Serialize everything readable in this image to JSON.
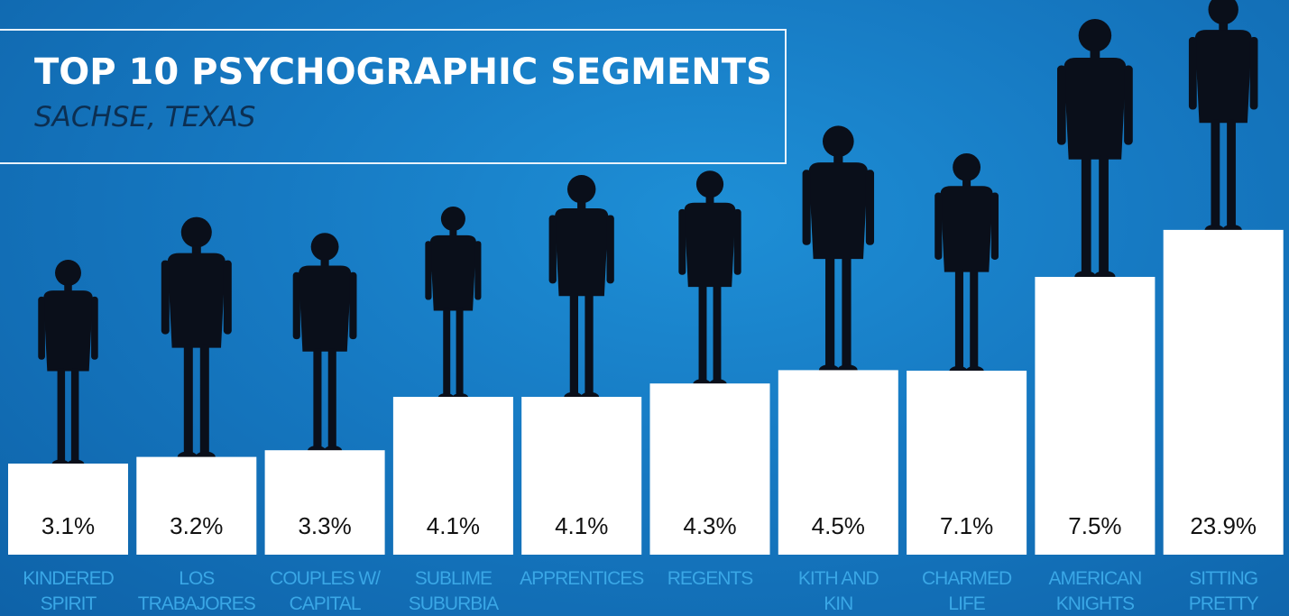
{
  "colors": {
    "background": "#1679c2",
    "bar": "#ffffff",
    "title": "#ffffff",
    "subtitle": "#0c2f52",
    "category_label": "#3aa7e6",
    "silhouette": "#0a0f1a"
  },
  "chart_data": {
    "type": "bar",
    "title": "TOP 10 PSYCHOGRAPHIC SEGMENTS",
    "subtitle": "SACHSE, TEXAS",
    "categories": [
      [
        "KINDERED",
        "SPIRIT"
      ],
      [
        "LOS",
        "TRABAJORES"
      ],
      [
        "COUPLES W/",
        "CAPITAL"
      ],
      [
        "SUBLIME",
        "SUBURBIA"
      ],
      [
        "APPRENTICES"
      ],
      [
        "REGENTS"
      ],
      [
        "KITH AND",
        "KIN"
      ],
      [
        "CHARMED",
        "LIFE"
      ],
      [
        "AMERICAN",
        "KNIGHTS"
      ],
      [
        "SITTING",
        "PRETTY"
      ]
    ],
    "values": [
      3.1,
      3.2,
      3.3,
      4.1,
      4.1,
      4.3,
      4.5,
      7.1,
      7.5,
      23.9
    ],
    "value_labels": [
      "3.1%",
      "3.2%",
      "3.3%",
      "4.1%",
      "4.1%",
      "4.3%",
      "4.5%",
      "7.1%",
      "7.5%",
      "23.9%"
    ],
    "icons": [
      "person-silhouette-icon",
      "person-silhouette-icon",
      "person-silhouette-icon",
      "person-silhouette-icon",
      "person-silhouette-icon",
      "person-silhouette-icon",
      "person-silhouette-icon",
      "person-silhouette-icon",
      "person-silhouette-icon",
      "person-silhouette-icon"
    ],
    "xlabel": "",
    "ylabel": "",
    "grid": false,
    "legend": "none"
  }
}
